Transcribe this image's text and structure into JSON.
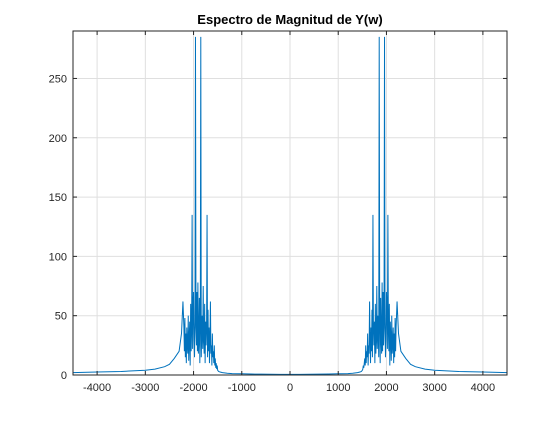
{
  "chart_data": {
    "type": "line",
    "title": "Espectro de Magnitud de Y(w)",
    "xlabel": "",
    "ylabel": "",
    "xlim": [
      -4500,
      4500
    ],
    "ylim": [
      0,
      290
    ],
    "x_ticks": [
      -4000,
      -3000,
      -2000,
      -1000,
      0,
      1000,
      2000,
      3000,
      4000
    ],
    "x_tick_labels": [
      "-4000",
      "-3000",
      "-2000",
      "-1000",
      "0",
      "1000",
      "2000",
      "3000",
      "4000"
    ],
    "y_ticks": [
      0,
      50,
      100,
      150,
      200,
      250
    ],
    "y_tick_labels": [
      "0",
      "50",
      "100",
      "150",
      "200",
      "250"
    ],
    "grid": true,
    "box": true,
    "line_color": "#0072BD",
    "series": [
      {
        "x": [
          -4500,
          -4000,
          -3500,
          -3000,
          -2800,
          -2600,
          -2500,
          -2400,
          -2300,
          -2250,
          -2220,
          -2200,
          -2190,
          -2180,
          -2170,
          -2160,
          -2150,
          -2140,
          -2130,
          -2120,
          -2110,
          -2100,
          -2090,
          -2080,
          -2070,
          -2060,
          -2050,
          -2040,
          -2030,
          -2020,
          -2010,
          -2000,
          -1990,
          -1980,
          -1970,
          -1960,
          -1950,
          -1940,
          -1930,
          -1920,
          -1910,
          -1900,
          -1890,
          -1880,
          -1870,
          -1860,
          -1850,
          -1840,
          -1830,
          -1820,
          -1810,
          -1800,
          -1790,
          -1780,
          -1770,
          -1760,
          -1750,
          -1740,
          -1730,
          -1720,
          -1710,
          -1700,
          -1690,
          -1680,
          -1670,
          -1660,
          -1650,
          -1640,
          -1630,
          -1620,
          -1610,
          -1600,
          -1590,
          -1580,
          -1570,
          -1560,
          -1550,
          -1540,
          -1530,
          -1520,
          -1510,
          -1500,
          -1480,
          -1450,
          -1400,
          -1300,
          -1200,
          -1000,
          -800,
          -600,
          -400,
          -200,
          0,
          200,
          400,
          600,
          800,
          1000,
          1200,
          1300,
          1400,
          1450,
          1480,
          1500,
          1510,
          1520,
          1530,
          1540,
          1550,
          1560,
          1570,
          1580,
          1590,
          1600,
          1610,
          1620,
          1630,
          1640,
          1650,
          1660,
          1670,
          1680,
          1690,
          1700,
          1710,
          1720,
          1730,
          1740,
          1750,
          1760,
          1770,
          1780,
          1790,
          1800,
          1810,
          1820,
          1830,
          1840,
          1850,
          1860,
          1870,
          1880,
          1890,
          1900,
          1910,
          1920,
          1930,
          1940,
          1950,
          1960,
          1970,
          1980,
          1990,
          2000,
          2010,
          2020,
          2030,
          2040,
          2050,
          2060,
          2070,
          2080,
          2090,
          2100,
          2110,
          2120,
          2130,
          2140,
          2150,
          2160,
          2170,
          2180,
          2190,
          2200,
          2220,
          2250,
          2300,
          2400,
          2500,
          2600,
          2800,
          3000,
          3500,
          4000,
          4500
        ],
        "y": [
          2,
          2.5,
          3,
          4,
          5,
          7,
          9,
          14,
          20,
          35,
          62,
          40,
          20,
          48,
          15,
          35,
          10,
          40,
          25,
          18,
          50,
          12,
          30,
          45,
          8,
          60,
          20,
          38,
          135,
          22,
          55,
          70,
          30,
          15,
          45,
          285,
          40,
          25,
          70,
          20,
          78,
          18,
          30,
          65,
          10,
          40,
          285,
          15,
          35,
          50,
          22,
          75,
          30,
          18,
          60,
          10,
          45,
          25,
          38,
          135,
          15,
          55,
          20,
          40,
          10,
          30,
          62,
          18,
          25,
          8,
          35,
          15,
          20,
          10,
          25,
          8,
          14,
          6,
          10,
          5,
          8,
          4,
          3,
          2.5,
          2,
          1.5,
          1.2,
          1,
          0.8,
          0.7,
          0.6,
          0.5,
          0.5,
          0.5,
          0.6,
          0.7,
          0.8,
          1,
          1.2,
          1.5,
          2,
          2.5,
          3,
          4,
          5,
          8,
          6,
          10,
          14,
          8,
          25,
          10,
          20,
          15,
          35,
          8,
          25,
          18,
          62,
          30,
          10,
          40,
          20,
          55,
          15,
          135,
          38,
          25,
          45,
          10,
          60,
          18,
          30,
          75,
          22,
          50,
          35,
          15,
          285,
          40,
          10,
          65,
          30,
          18,
          78,
          20,
          70,
          25,
          40,
          285,
          45,
          15,
          30,
          70,
          55,
          22,
          135,
          38,
          20,
          60,
          8,
          45,
          30,
          12,
          50,
          18,
          25,
          40,
          10,
          35,
          15,
          48,
          20,
          40,
          62,
          35,
          20,
          14,
          9,
          7,
          5,
          4,
          3,
          2.5,
          2
        ]
      }
    ]
  }
}
